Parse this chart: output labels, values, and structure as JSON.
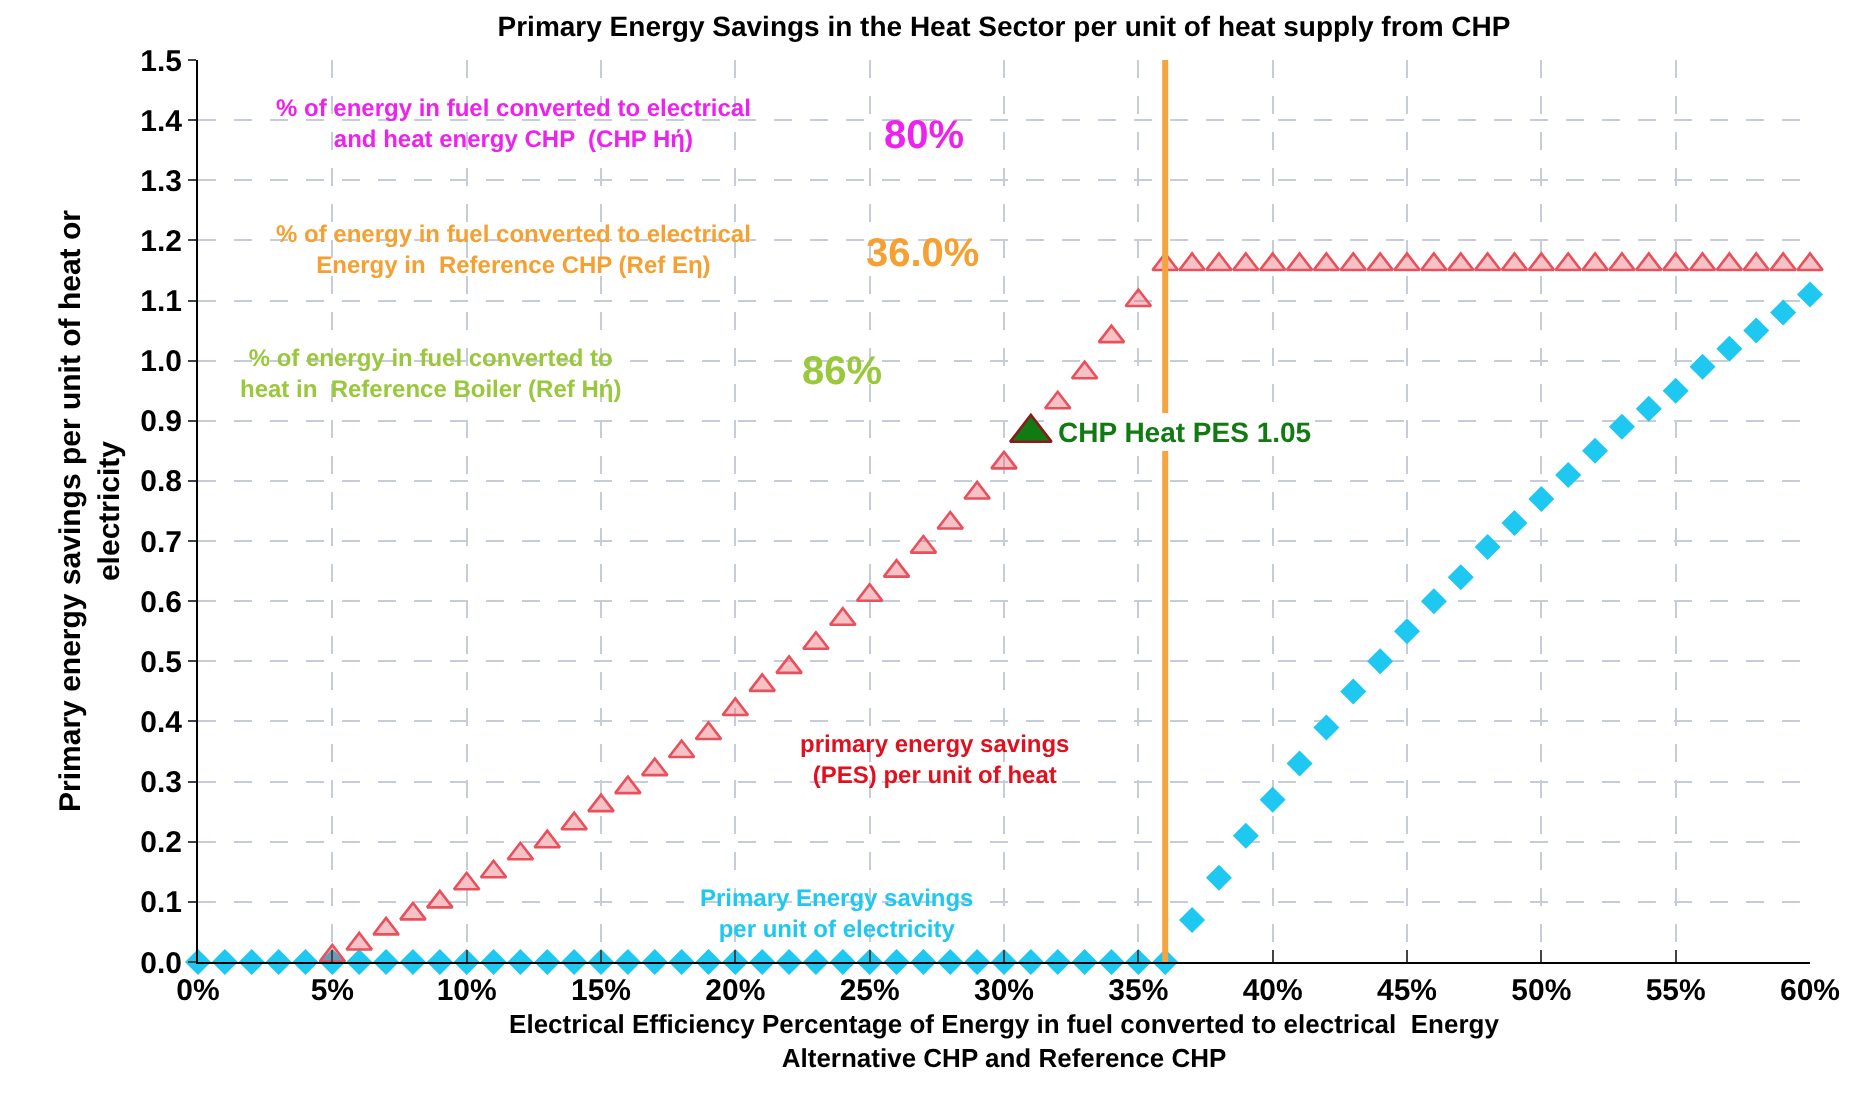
{
  "chart_data": {
    "type": "scatter",
    "title": "Primary Energy Savings in the Heat Sector per unit of heat supply from CHP",
    "xlabel": "Electrical Efficiency Percentage of Energy in fuel converted to electrical  Energy Alternative CHP and Reference CHP",
    "ylabel": "Primary energy savings per unit of heat or electricity",
    "x": [
      0,
      1,
      2,
      3,
      4,
      5,
      6,
      7,
      8,
      9,
      10,
      11,
      12,
      13,
      14,
      15,
      16,
      17,
      18,
      19,
      20,
      21,
      22,
      23,
      24,
      25,
      26,
      27,
      28,
      29,
      30,
      31,
      32,
      33,
      34,
      35,
      36,
      37,
      38,
      39,
      40,
      41,
      42,
      43,
      44,
      45,
      46,
      47,
      48,
      49,
      50,
      51,
      52,
      53,
      54,
      55,
      56,
      57,
      58,
      59,
      60
    ],
    "series": [
      {
        "name": "primary energy savings (PES) per unit of heat",
        "color": "#e8505b",
        "marker": "triangle",
        "values": [
          null,
          null,
          null,
          null,
          null,
          0.01,
          0.03,
          0.055,
          0.08,
          0.1,
          0.13,
          0.15,
          0.18,
          0.2,
          0.23,
          0.26,
          0.29,
          0.32,
          0.35,
          0.38,
          0.42,
          0.46,
          0.49,
          0.53,
          0.57,
          0.61,
          0.65,
          0.69,
          0.73,
          0.78,
          0.83,
          null,
          0.93,
          0.98,
          1.04,
          1.1,
          1.16,
          1.16,
          1.16,
          1.16,
          1.16,
          1.16,
          1.16,
          1.16,
          1.16,
          1.16,
          1.16,
          1.16,
          1.16,
          1.16,
          1.16,
          1.16,
          1.16,
          1.16,
          1.16,
          1.16,
          1.16,
          1.16,
          1.16,
          1.16,
          1.16
        ]
      },
      {
        "name": "Primary Energy savings per unit of electricity",
        "color": "#1ec8f0",
        "marker": "diamond",
        "values": [
          0,
          0,
          0,
          0,
          0,
          0,
          0,
          0,
          0,
          0,
          0,
          0,
          0,
          0,
          0,
          0,
          0,
          0,
          0,
          0,
          0,
          0,
          0,
          0,
          0,
          0,
          0,
          0,
          0,
          0,
          0,
          0,
          0,
          0,
          0,
          0,
          0,
          0.07,
          0.14,
          0.21,
          0.27,
          0.33,
          0.39,
          0.45,
          0.5,
          0.55,
          0.6,
          0.64,
          0.69,
          0.73,
          0.77,
          0.81,
          0.85,
          0.89,
          0.92,
          0.95,
          0.99,
          1.02,
          1.05,
          1.08,
          1.11
        ]
      },
      {
        "color": "#127a12",
        "marker": "triangle",
        "x": [
          31
        ],
        "values": [
          0.88
        ]
      }
    ],
    "annotations": [
      "% of energy in fuel converted to electrical and heat energy CHP  (CHP Hή)",
      "80%",
      "% of energy in fuel converted to electrical Energy in  Reference CHP (Ref Eη)",
      "36.0%",
      "% of energy in fuel converted to heat in  Reference Boiler (Ref Hή)",
      "86%",
      {
        "text": "CHP Heat PES 1.05",
        "x": 31,
        "y": 0.88
      }
    ],
    "ref_lines": [
      {
        "axis": "x",
        "value": 36,
        "color": "#f5a540",
        "line_style": "solid"
      }
    ],
    "xlim": [
      0,
      60
    ],
    "ylim": [
      0,
      1.5
    ],
    "xticks": [
      {
        "value": 0,
        "label": "0%"
      },
      {
        "value": 5,
        "label": "5%"
      },
      {
        "value": 10,
        "label": "10%"
      },
      {
        "value": 15,
        "label": "15%"
      },
      {
        "value": 20,
        "label": "20%"
      },
      {
        "value": 25,
        "label": "25%"
      },
      {
        "value": 30,
        "label": "30%"
      },
      {
        "value": 35,
        "label": "35%"
      },
      {
        "value": 40,
        "label": "40%"
      },
      {
        "value": 45,
        "label": "45%"
      },
      {
        "value": 50,
        "label": "50%"
      },
      {
        "value": 55,
        "label": "55%"
      },
      {
        "value": 60,
        "label": "60%"
      }
    ],
    "yticks": [
      {
        "value": 0,
        "label": "0.0"
      },
      0.1,
      0.2,
      0.3,
      0.4,
      0.5,
      0.6,
      0.7,
      0.8,
      0.9,
      {
        "value": 1,
        "label": "1.0"
      },
      1.1,
      1.2,
      1.3,
      1.4,
      1.5
    ],
    "grid": true,
    "legend": false
  }
}
